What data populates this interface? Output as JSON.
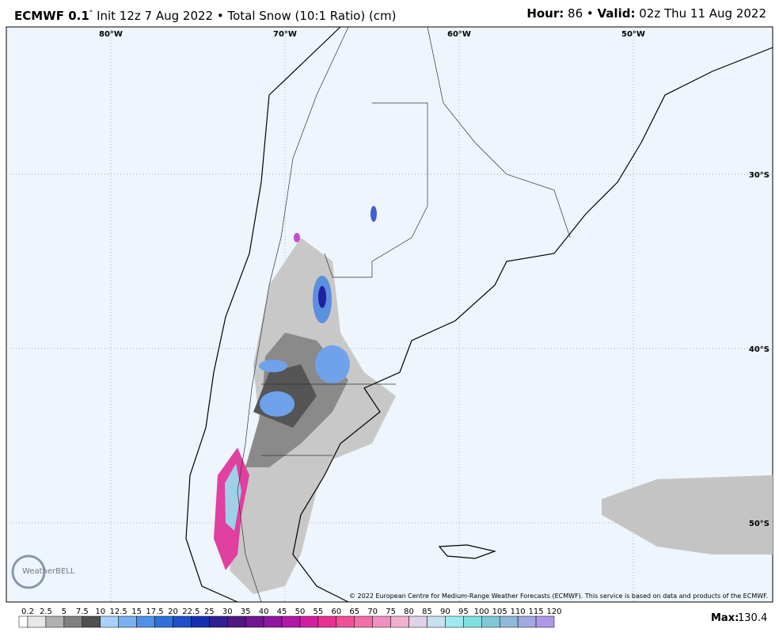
{
  "header": {
    "model": "ECMWF 0.1",
    "degree": "°",
    "run": "Init 12z 7 Aug 2022 • Total Snow (10:1 Ratio) (cm)",
    "hour_label": "Hour:",
    "hour": "86 •",
    "valid_label": "Valid:",
    "valid": "02z Thu 11 Aug 2022"
  },
  "map": {
    "lon_labels": [
      "80°W",
      "70°W",
      "60°W",
      "50°W"
    ],
    "lat_labels": [
      "30°S",
      "40°S",
      "50°S"
    ],
    "copyright": "© 2022 European Centre for Medium-Range Weather Forecasts (ECMWF). This service is based on data and products of the ECMWF.",
    "logo": "WeatherBELL"
  },
  "colorbar": {
    "levels": [
      0.2,
      2.5,
      5,
      7.5,
      10,
      12.5,
      15,
      17.5,
      20,
      22.5,
      25,
      30,
      35,
      40,
      45,
      50,
      55,
      60,
      65,
      70,
      75,
      80,
      85,
      90,
      95,
      100,
      105,
      110,
      115,
      120
    ],
    "max_label": "Max:",
    "max": 130.4
  }
}
